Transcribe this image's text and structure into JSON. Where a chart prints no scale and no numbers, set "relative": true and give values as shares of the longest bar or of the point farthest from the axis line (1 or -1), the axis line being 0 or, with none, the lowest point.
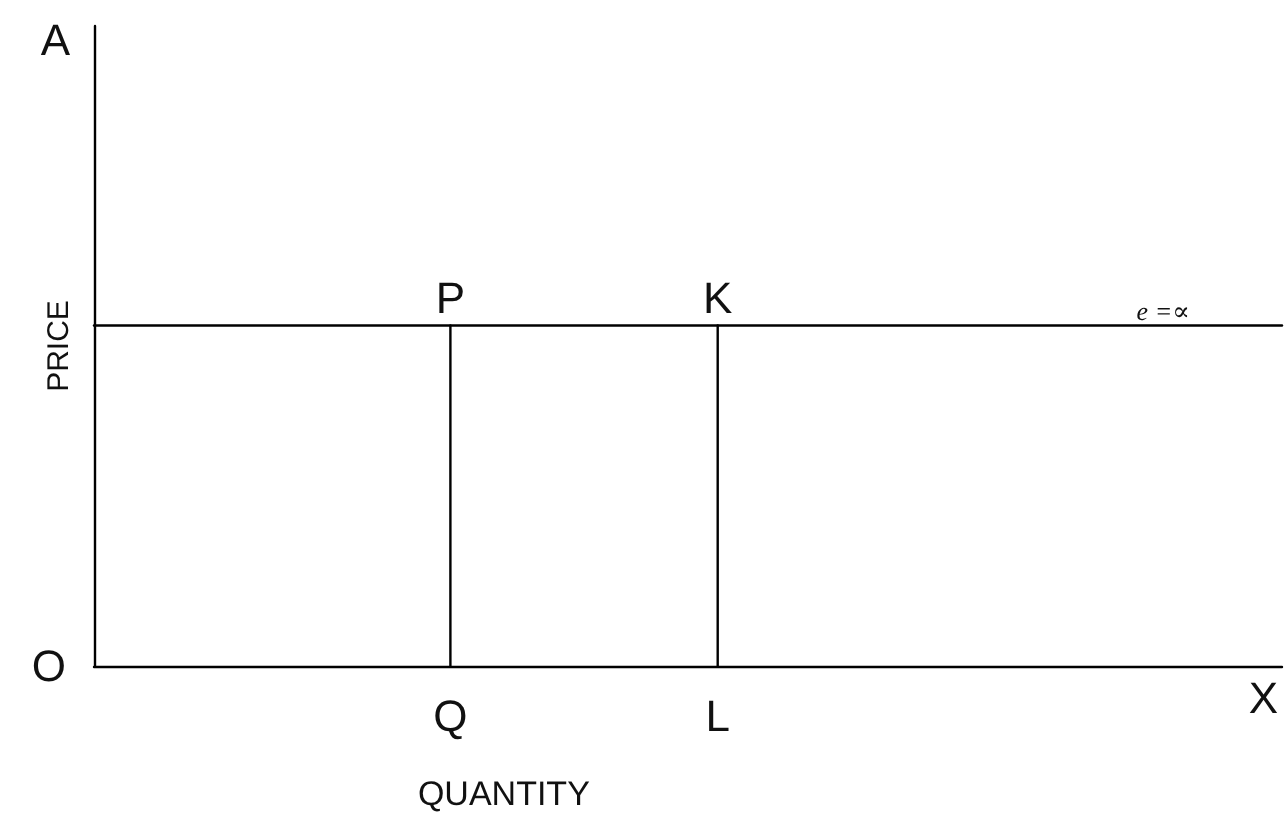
{
  "chart_data": {
    "type": "line",
    "relative": true,
    "xlabel": "QUANTITY",
    "ylabel": "PRICE",
    "marker": "none",
    "tick_labels": "x",
    "categories": [
      null,
      null,
      null,
      null,
      null,
      null,
      null,
      null,
      null,
      null,
      null,
      null,
      "Q",
      null,
      null,
      null,
      null,
      null,
      null,
      null,
      null,
      "L",
      null,
      null,
      null,
      null,
      null,
      null,
      null,
      null,
      null,
      null,
      null,
      null,
      null,
      null,
      null,
      null,
      null,
      null,
      null
    ],
    "series": [
      {
        "color": "#000000",
        "values": [
          1,
          1,
          1,
          1,
          1,
          1,
          1,
          1,
          1,
          1,
          1,
          1,
          1,
          1,
          1,
          1,
          1,
          1,
          1,
          1,
          1,
          1,
          1,
          1,
          1,
          1,
          1,
          1,
          1,
          1,
          1,
          1,
          1,
          1,
          1,
          1,
          1,
          1,
          1,
          1,
          1
        ]
      },
      {
        "color": "#000000",
        "x": [
          "Q",
          "Q"
        ],
        "values": [
          0,
          1
        ]
      },
      {
        "color": "#000000",
        "x": [
          "L",
          "L"
        ],
        "values": [
          0,
          1
        ]
      }
    ],
    "annotations": [
      "A",
      "O",
      "X",
      {
        "text": "P",
        "x": "Q",
        "y": 1
      },
      {
        "text": "K",
        "x": "L",
        "y": 1
      },
      {
        "text": "e =∝",
        "y": 1
      }
    ]
  }
}
